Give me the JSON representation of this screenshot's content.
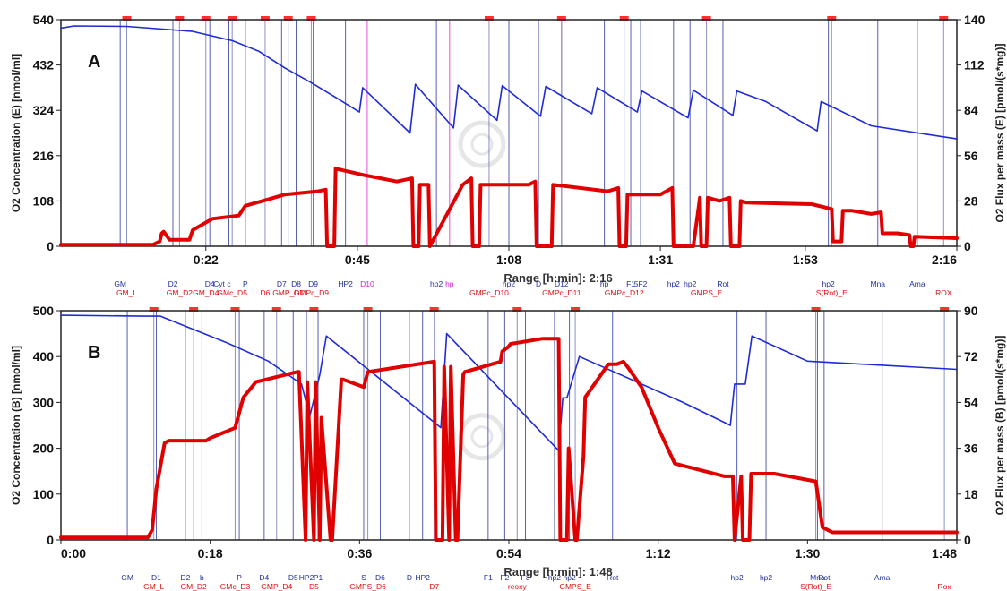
{
  "chart_data": [
    {
      "type": "line",
      "panel_label": "A",
      "range_text": "Range [h:min]: 2:16",
      "ylabel_left": "O2 Concentration  (E) [nmol/ml]",
      "ylabel_right": "O2 Flux per mass  (E) [pmol/(s*mg)]",
      "ylim_left": [
        0,
        540
      ],
      "ylim_right": [
        0,
        140
      ],
      "left_ticks": [
        "540",
        "432",
        "324",
        "216",
        "108",
        "0"
      ],
      "right_ticks": [
        "140",
        "112",
        "84",
        "56",
        "28",
        "0"
      ],
      "xlim": [
        0,
        136
      ],
      "x_ticks": [
        {
          "t": 22,
          "label": "0:22"
        },
        {
          "t": 45,
          "label": "0:45"
        },
        {
          "t": 68,
          "label": "1:08"
        },
        {
          "t": 91,
          "label": "1:31"
        },
        {
          "t": 113,
          "label": "1:53"
        },
        {
          "t": 136,
          "label": "2:16"
        }
      ],
      "events_blue": [
        {
          "t": 9,
          "label": "GM"
        },
        {
          "t": 17,
          "label": "D2"
        },
        {
          "t": 22.6,
          "label": "D4"
        },
        {
          "t": 24,
          "label": "Cyt"
        },
        {
          "t": 25.5,
          "label": "c"
        },
        {
          "t": 28,
          "label": "P"
        },
        {
          "t": 33.5,
          "label": "D7"
        },
        {
          "t": 35.7,
          "label": "D8"
        },
        {
          "t": 38.3,
          "label": "D9"
        },
        {
          "t": 43.2,
          "label": "HP2"
        },
        {
          "t": 57,
          "label": "hp2"
        },
        {
          "t": 68,
          "label": "hp2"
        },
        {
          "t": 72.5,
          "label": "D"
        },
        {
          "t": 76,
          "label": "D12"
        },
        {
          "t": 82.5,
          "label": "hp"
        },
        {
          "t": 86.5,
          "label": "F1"
        },
        {
          "t": 88,
          "label": "5F2"
        },
        {
          "t": 93,
          "label": "hp2"
        },
        {
          "t": 95.5,
          "label": "hp2"
        },
        {
          "t": 100.5,
          "label": "Rot"
        },
        {
          "t": 116.5,
          "label": "hp2"
        },
        {
          "t": 124,
          "label": "Mna"
        },
        {
          "t": 130,
          "label": "Ama"
        }
      ],
      "events_red": [
        {
          "t": 10,
          "label": "GM_L"
        },
        {
          "t": 18,
          "label": "GM_D2"
        },
        {
          "t": 22,
          "label": "GM_D4"
        },
        {
          "t": 26,
          "label": "GMc_D5"
        },
        {
          "t": 31,
          "label": "D6"
        },
        {
          "t": 34.5,
          "label": "GMP_D7"
        },
        {
          "t": 38,
          "label": "GMPc_D9"
        },
        {
          "t": 65,
          "label": "GMPc_D10"
        },
        {
          "t": 76,
          "label": "GMPc_D11"
        },
        {
          "t": 85.5,
          "label": "GMPc_D12"
        },
        {
          "t": 98,
          "label": "GMPS_E"
        },
        {
          "t": 117,
          "label": "S(Rot)_E"
        },
        {
          "t": 134,
          "label": "ROX"
        }
      ],
      "events_magenta": [
        {
          "t": 46.5,
          "label": "D10"
        },
        {
          "t": 59,
          "label": "hp"
        }
      ],
      "series": [
        {
          "axis": "left",
          "color": "#1f2bd6",
          "x": [
            0,
            2,
            10,
            20,
            26,
            30,
            34,
            38,
            42,
            45.3,
            45.8,
            53,
            53.8,
            59.6,
            60.3,
            66.2,
            67,
            72.8,
            73.6,
            80.6,
            81.4,
            87.5,
            88.2,
            95.2,
            96,
            102,
            102.6,
            107,
            114.8,
            115.4,
            123,
            136
          ],
          "y": [
            520,
            525,
            524,
            512,
            490,
            465,
            425,
            390,
            352,
            320,
            378,
            270,
            386,
            282,
            384,
            300,
            383,
            310,
            381,
            316,
            378,
            320,
            370,
            306,
            372,
            312,
            370,
            345,
            275,
            345,
            287,
            256
          ]
        },
        {
          "axis": "right",
          "color": "#e00000",
          "x": [
            0,
            14,
            15,
            15.3,
            15.6,
            16.5,
            19.5,
            20,
            23,
            27,
            28,
            31.5,
            34,
            39,
            40.2,
            40.4,
            41.5,
            41.7,
            46,
            51,
            53.3,
            53.5,
            54.3,
            54.5,
            55.8,
            56,
            61,
            62.3,
            62.5,
            63.5,
            63.7,
            71,
            72,
            72.2,
            74.5,
            74.7,
            83,
            84.6,
            84.8,
            85.8,
            86,
            91,
            92.8,
            93,
            96,
            97,
            97.2,
            98,
            98.2,
            100,
            101.5,
            101.7,
            103,
            103.2,
            104,
            114,
            117,
            117.2,
            118.5,
            118.7,
            120,
            123,
            124.5,
            124.7,
            127,
            128.8,
            129,
            129.4,
            129.6,
            136
          ],
          "y": [
            1,
            1,
            3,
            8,
            9,
            4,
            4,
            10,
            17,
            19,
            25,
            29,
            32,
            34,
            35,
            0,
            0,
            48,
            44,
            40,
            42,
            0,
            0,
            38,
            38,
            0,
            38,
            42,
            0,
            0,
            38,
            38,
            40,
            0,
            0,
            38,
            34,
            36,
            0,
            0,
            32,
            32,
            36,
            0,
            0,
            30,
            0,
            0,
            30,
            28,
            30,
            0,
            0,
            28,
            27,
            26,
            23,
            3,
            3,
            22,
            22,
            20,
            21,
            8,
            8,
            7,
            0,
            0,
            6,
            5
          ]
        }
      ]
    },
    {
      "type": "line",
      "panel_label": "B",
      "range_text": "Range [h:min]: 1:48",
      "ylabel_left": "O2 Concentration  (B) [nmol/ml]",
      "ylabel_right": "O2 Flux per mass  (B) [pmol/(s*mg)]",
      "ylim_left": [
        0,
        500
      ],
      "ylim_right": [
        0,
        90
      ],
      "left_ticks": [
        "500",
        "400",
        "300",
        "200",
        "100",
        "0"
      ],
      "right_ticks": [
        "90",
        "72",
        "54",
        "36",
        "18",
        "0"
      ],
      "xlim": [
        0,
        108
      ],
      "x_ticks": [
        {
          "t": 0,
          "label": "0:00"
        },
        {
          "t": 18,
          "label": "0:18"
        },
        {
          "t": 36,
          "label": "0:36"
        },
        {
          "t": 54,
          "label": "0:54"
        },
        {
          "t": 72,
          "label": "1:12"
        },
        {
          "t": 90,
          "label": "1:30"
        },
        {
          "t": 108,
          "label": "1:48"
        }
      ],
      "events_blue": [
        {
          "t": 8,
          "label": "GM"
        },
        {
          "t": 11.5,
          "label": "D1"
        },
        {
          "t": 15,
          "label": "D2"
        },
        {
          "t": 17,
          "label": "b"
        },
        {
          "t": 21.5,
          "label": "P"
        },
        {
          "t": 24.5,
          "label": "D4"
        },
        {
          "t": 28,
          "label": "D5"
        },
        {
          "t": 29.6,
          "label": "HP2"
        },
        {
          "t": 31,
          "label": "P1"
        },
        {
          "t": 36.5,
          "label": "S"
        },
        {
          "t": 38.5,
          "label": "D6"
        },
        {
          "t": 42,
          "label": "D"
        },
        {
          "t": 43.6,
          "label": "HP2"
        },
        {
          "t": 51.5,
          "label": "F1"
        },
        {
          "t": 53.5,
          "label": "F2"
        },
        {
          "t": 56,
          "label": "F3"
        },
        {
          "t": 59.5,
          "label": "hp2"
        },
        {
          "t": 61.3,
          "label": "hp2"
        },
        {
          "t": 66.5,
          "label": "Rot"
        },
        {
          "t": 81.5,
          "label": "hp2"
        },
        {
          "t": 85,
          "label": "hp2"
        },
        {
          "t": 92,
          "label": "Rot"
        },
        {
          "t": 91.2,
          "label": "Mna"
        },
        {
          "t": 99,
          "label": "Ama"
        }
      ],
      "events_red": [
        {
          "t": 11.2,
          "label": "GM_L"
        },
        {
          "t": 16,
          "label": "GM_D2"
        },
        {
          "t": 21,
          "label": "GMc_D3"
        },
        {
          "t": 26,
          "label": "GMP_D4"
        },
        {
          "t": 30.5,
          "label": "D5"
        },
        {
          "t": 37,
          "label": "GMPS_D6"
        },
        {
          "t": 45,
          "label": "D7"
        },
        {
          "t": 55,
          "label": "reoxy"
        },
        {
          "t": 62,
          "label": "GMPS_E"
        },
        {
          "t": 91,
          "label": "S(Rot)_E"
        },
        {
          "t": 106.5,
          "label": "Rox"
        }
      ],
      "series": [
        {
          "axis": "left",
          "color": "#1f2bd6",
          "x": [
            0,
            10,
            12,
            20,
            25,
            29,
            30,
            31.2,
            32,
            45.8,
            46.5,
            60,
            60.5,
            61,
            62.5,
            75,
            80.7,
            81.2,
            82.5,
            83.3,
            90,
            108
          ],
          "y": [
            490,
            488,
            488,
            430,
            390,
            340,
            270,
            360,
            445,
            245,
            450,
            195,
            310,
            310,
            400,
            300,
            250,
            340,
            340,
            445,
            390,
            372
          ]
        },
        {
          "axis": "right",
          "color": "#e00000",
          "x": [
            0,
            10.5,
            11,
            11.5,
            12.5,
            13,
            17.5,
            18,
            19.5,
            21,
            22,
            23.5,
            28.5,
            28.7,
            29.5,
            29.7,
            30.5,
            30.7,
            31.2,
            31.4,
            32.5,
            32.7,
            33.8,
            34,
            36.5,
            37,
            45,
            45.2,
            46,
            46.2,
            46.8,
            47,
            47.6,
            47.8,
            48.5,
            48.7,
            53,
            53.2,
            54,
            54.2,
            58,
            60,
            60.2,
            61,
            61.2,
            62,
            62.2,
            63,
            63.2,
            66,
            67,
            67.8,
            68.3,
            70,
            72,
            74,
            80,
            81,
            81.2,
            82,
            82.2,
            83,
            83.2,
            86,
            91,
            91.8,
            93,
            108
          ],
          "y": [
            1,
            1,
            4,
            20,
            38,
            39,
            39,
            40,
            42,
            44,
            56,
            62,
            66,
            66,
            0,
            62,
            0,
            62,
            0,
            48,
            0,
            0,
            63,
            63,
            60,
            66,
            70,
            0,
            0,
            68,
            0,
            68,
            0,
            0,
            65,
            66,
            70,
            74,
            76,
            77,
            79,
            79,
            0,
            0,
            36,
            0,
            0,
            33,
            56,
            69,
            69,
            70,
            68,
            60,
            44,
            30,
            25,
            25,
            0,
            25,
            0,
            0,
            26,
            26,
            23,
            5,
            3,
            3
          ]
        }
      ]
    }
  ]
}
